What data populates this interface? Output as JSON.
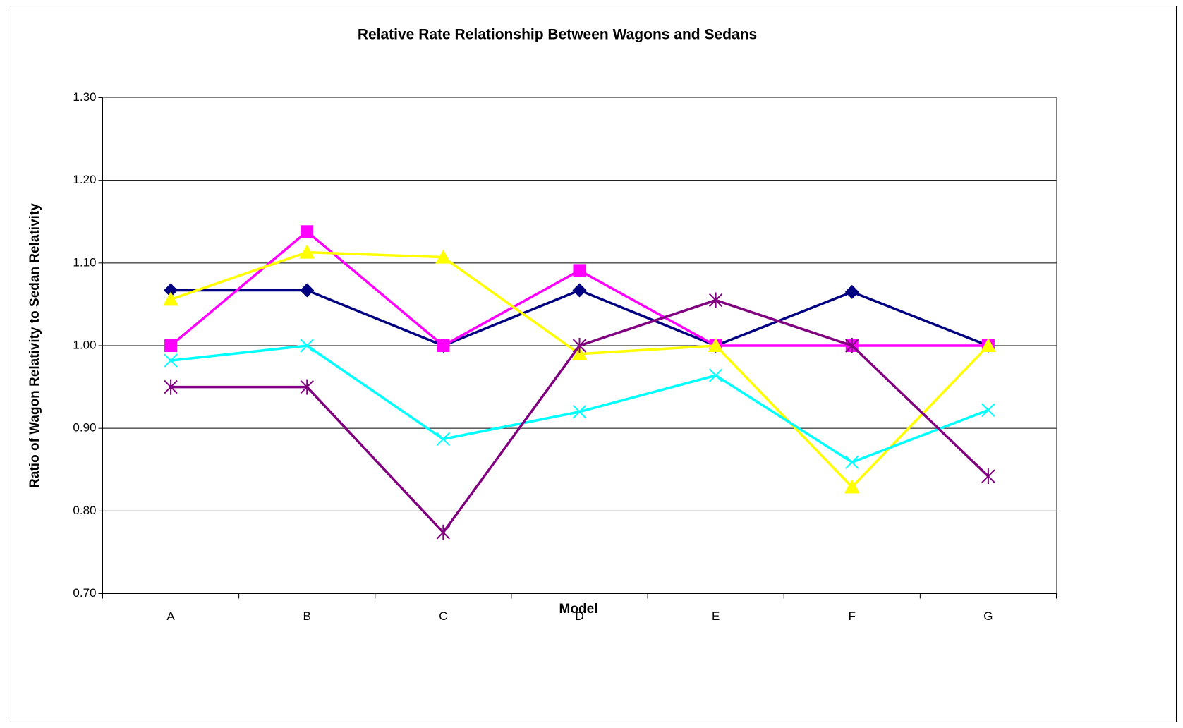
{
  "chart_data": {
    "type": "line",
    "title": "Relative Rate Relationship Between Wagons and Sedans",
    "x_label": "Model",
    "y_label": "Ratio of Wagon Relativity to Sedan Relativity",
    "categories": [
      "A",
      "B",
      "C",
      "D",
      "E",
      "F",
      "G"
    ],
    "ylim": [
      0.7,
      1.3
    ],
    "yticks": [
      {
        "value": 0.7,
        "label": "0.70"
      },
      {
        "value": 0.8,
        "label": "0.80"
      },
      {
        "value": 0.9,
        "label": "0.90"
      },
      {
        "value": 1.0,
        "label": "1.00"
      },
      {
        "value": 1.1,
        "label": "1.10"
      },
      {
        "value": 1.2,
        "label": "1.20"
      },
      {
        "value": 1.3,
        "label": "1.30"
      }
    ],
    "grid": true,
    "series": [
      {
        "color": "#000080",
        "marker": "diamond",
        "values": [
          1.067,
          1.067,
          1.0,
          1.067,
          1.0,
          1.065,
          1.0
        ]
      },
      {
        "color": "#ff00ff",
        "marker": "square",
        "values": [
          1.0,
          1.138,
          1.0,
          1.091,
          1.0,
          1.0,
          1.0
        ]
      },
      {
        "color": "#ffff00",
        "marker": "triangle",
        "values": [
          1.056,
          1.113,
          1.107,
          0.99,
          1.0,
          0.829,
          1.0
        ]
      },
      {
        "color": "#00ffff",
        "marker": "x",
        "values": [
          0.982,
          1.0,
          0.887,
          0.92,
          0.964,
          0.859,
          0.922
        ]
      },
      {
        "color": "#800080",
        "marker": "star",
        "values": [
          0.95,
          0.95,
          0.774,
          1.0,
          1.055,
          1.0,
          0.842
        ]
      }
    ]
  }
}
